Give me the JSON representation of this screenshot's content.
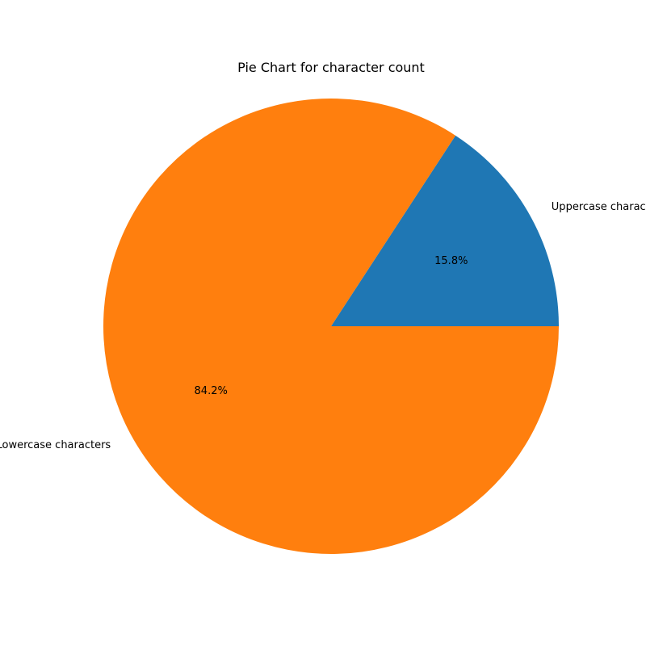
{
  "chart_data": {
    "type": "pie",
    "title": "Pie Chart for character count",
    "labels": [
      "Uppercase characters",
      "Lowercase characters"
    ],
    "values": [
      15.8,
      84.2
    ],
    "autopct_labels": [
      "15.8%",
      "84.2%"
    ],
    "colors": [
      "#1f77b4",
      "#ff7f0e"
    ],
    "start_angle_deg": 0,
    "direction": "counterclockwise",
    "legend": "none"
  }
}
